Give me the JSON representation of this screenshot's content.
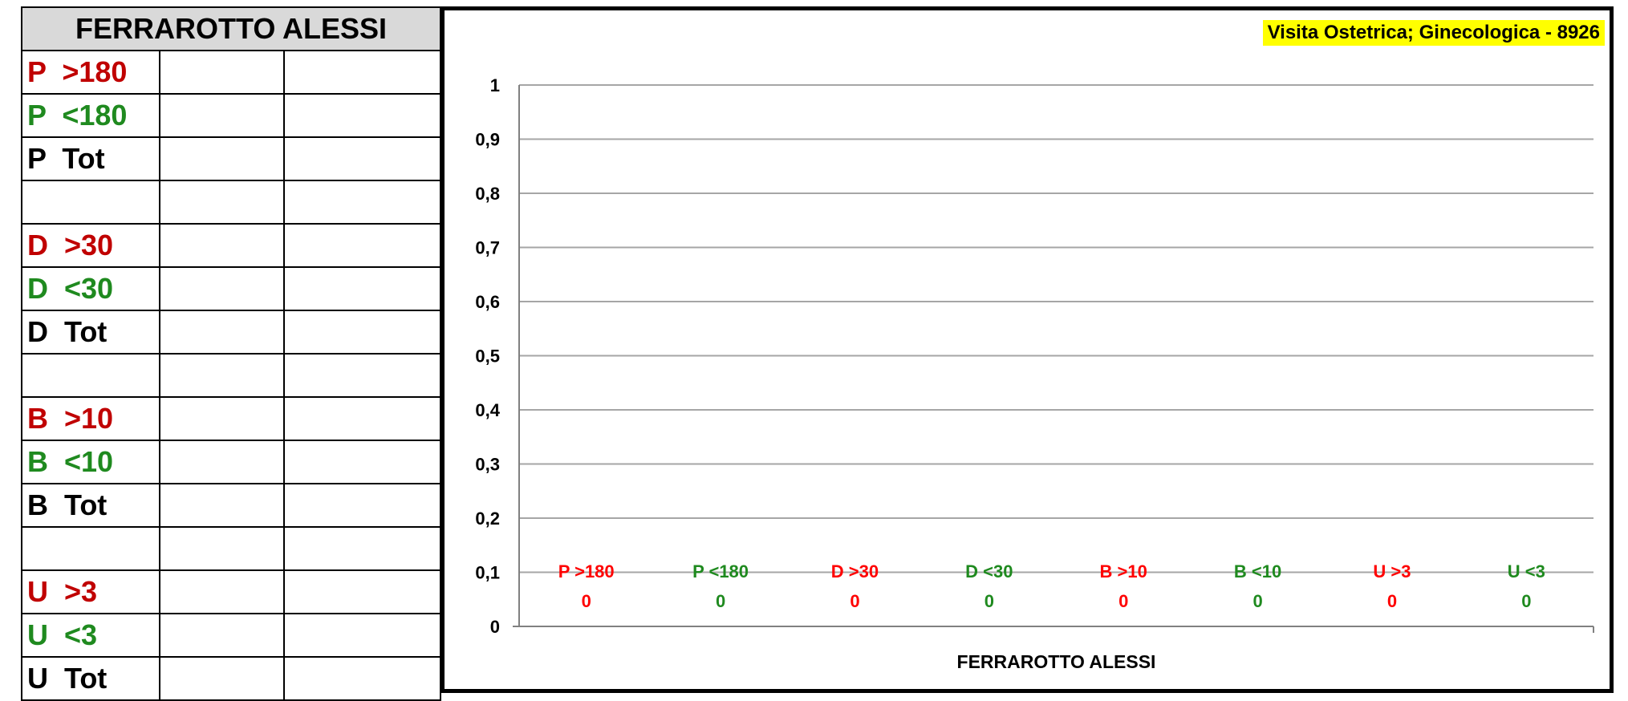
{
  "table": {
    "header": "FERRAROTTO ALESSI",
    "rows": [
      {
        "label": "P  >180",
        "color": "#c00000"
      },
      {
        "label": "P  <180",
        "color": "#1f8a1f"
      },
      {
        "label": "P  Tot",
        "color": "#000000"
      },
      {
        "label": "",
        "color": "#000000"
      },
      {
        "label": "D  >30",
        "color": "#c00000"
      },
      {
        "label": "D  <30",
        "color": "#1f8a1f"
      },
      {
        "label": "D  Tot",
        "color": "#000000"
      },
      {
        "label": "",
        "color": "#000000"
      },
      {
        "label": "B  >10",
        "color": "#c00000"
      },
      {
        "label": "B  <10",
        "color": "#1f8a1f"
      },
      {
        "label": "B  Tot",
        "color": "#000000"
      },
      {
        "label": "",
        "color": "#000000"
      },
      {
        "label": "U  >3",
        "color": "#c00000"
      },
      {
        "label": "U  <3",
        "color": "#1f8a1f"
      },
      {
        "label": "U  Tot",
        "color": "#000000"
      }
    ]
  },
  "chart_data": {
    "type": "bar",
    "title": "Visita Ostetrica; Ginecologica - 8926",
    "xlabel": "FERRAROTTO ALESSI",
    "ylabel": "",
    "ylim": [
      0,
      1
    ],
    "yticks": [
      "0",
      "0,1",
      "0,2",
      "0,3",
      "0,4",
      "0,5",
      "0,6",
      "0,7",
      "0,8",
      "0,9",
      "1"
    ],
    "grid": true,
    "categories": [
      "P  >180",
      "P  <180",
      "D  >30",
      "D  <30",
      "B  >10",
      "B  <10",
      "U  >3",
      "U  <3"
    ],
    "values": [
      0,
      0,
      0,
      0,
      0,
      0,
      0,
      0
    ],
    "colors": [
      "#ff0000",
      "#1f8a1f",
      "#ff0000",
      "#1f8a1f",
      "#ff0000",
      "#1f8a1f",
      "#ff0000",
      "#1f8a1f"
    ]
  }
}
